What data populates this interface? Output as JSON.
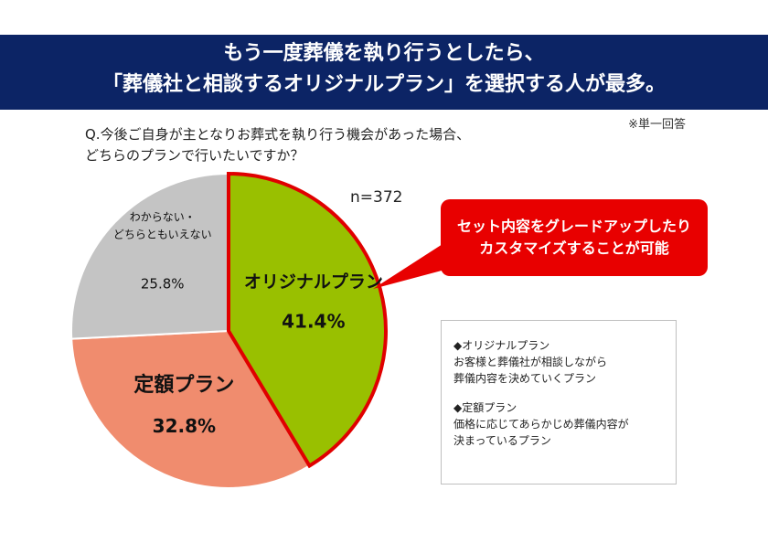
{
  "header": {
    "title_line1": "もう一度葬儀を執り行うとしたら、",
    "title_line2": "「葬儀社と相談するオリジナルプラン」を選択する人が最多。",
    "bg_color": "#0c2465"
  },
  "note": "※単一回答",
  "question": {
    "line1": "Q.今後ご自身が主となりお葬式を執り行う機会があった場合、",
    "line2": "どちらのプランで行いたいですか？"
  },
  "sample_size": "n=372",
  "callout": {
    "line1": "セット内容をグレードアップしたり",
    "line2": "カスタマイズすることが可能",
    "color": "#e80000"
  },
  "legend_box": {
    "item1_title": "◆オリジナルプラン",
    "item1_desc1": "お客様と葬儀社が相談しながら",
    "item1_desc2": "葬儀内容を決めていくプラン",
    "item2_title": "◆定額プラン",
    "item2_desc1": "価格に応じてあらかじめ葬儀内容が",
    "item2_desc2": "決まっているプラン"
  },
  "chart_data": {
    "type": "pie",
    "slices": [
      {
        "label": "オリジナルプラン",
        "value": 41.4,
        "display": "41.4%",
        "color": "#99c000",
        "highlight": true
      },
      {
        "label": "定額プラン",
        "value": 32.8,
        "display": "32.8%",
        "color": "#f08c6e"
      },
      {
        "label_lines": [
          "わからない・",
          "どちらともいえない"
        ],
        "value": 25.8,
        "display": "25.8%",
        "color": "#c4c4c4"
      }
    ],
    "start_angle": "12 o'clock",
    "direction": "clockwise",
    "highlight_border_color": "#e00000"
  }
}
